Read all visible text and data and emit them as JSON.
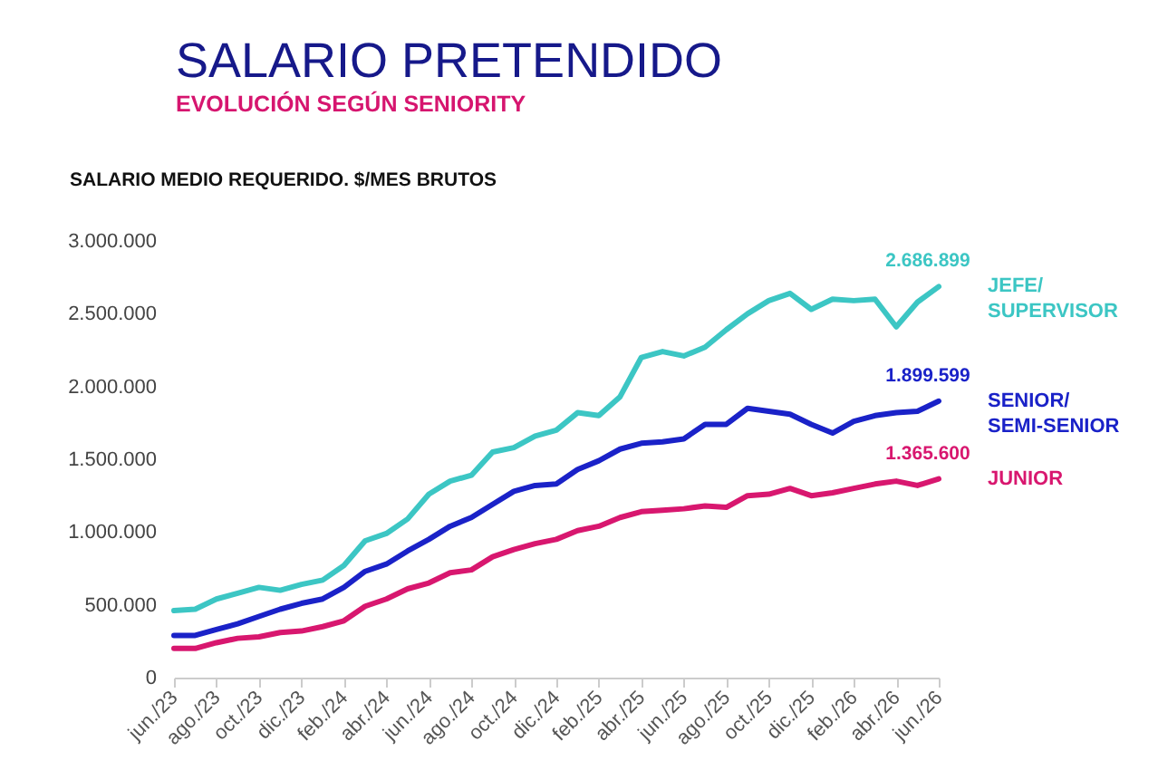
{
  "chart_data": {
    "type": "line",
    "title": "SALARIO PRETENDIDO",
    "subtitle": "EVOLUCIÓN SEGÚN SENIORITY",
    "ylabel": "SALARIO MEDIO REQUERIDO. $/MES BRUTOS",
    "categories": [
      "jun./23",
      null,
      "ago./23",
      null,
      "oct./23",
      null,
      "dic./23",
      null,
      "feb./24",
      null,
      "abr./24",
      null,
      "jun./24",
      null,
      "ago./24",
      null,
      "oct./24",
      null,
      "dic./24",
      null,
      "feb./25",
      null,
      "abr./25",
      null,
      "jun./25",
      null,
      "ago./25",
      null,
      "oct./25",
      null,
      "dic./25",
      null,
      "feb./26",
      null,
      "abr./26",
      null,
      "jun./26"
    ],
    "ylim": [
      0,
      3000000
    ],
    "yticks": [
      0,
      {
        "value": 500000,
        "label": "500.000"
      },
      {
        "value": 1000000,
        "label": "1.000.000"
      },
      {
        "value": 1500000,
        "label": "1.500.000"
      },
      {
        "value": 2000000,
        "label": "2.000.000"
      },
      {
        "value": 2500000,
        "label": "2.500.000"
      },
      {
        "value": 3000000,
        "label": "3.000.000"
      }
    ],
    "grid": false,
    "line_style": "solid",
    "series": [
      {
        "name": "JEFE/ SUPERVISOR",
        "color": "#3cc6c4",
        "values": [
          460000,
          470000,
          540000,
          580000,
          620000,
          600000,
          640000,
          670000,
          770000,
          940000,
          990000,
          1090000,
          1260000,
          1350000,
          1390000,
          1550000,
          1580000,
          1660000,
          1700000,
          1820000,
          1800000,
          1930000,
          2200000,
          2240000,
          2210000,
          2270000,
          2390000,
          2500000,
          2590000,
          2640000,
          2530000,
          2600000,
          2590000,
          2600000,
          2410000,
          2580000,
          2686899
        ],
        "value_labels": [
          null,
          null,
          null,
          null,
          null,
          null,
          null,
          null,
          null,
          null,
          null,
          null,
          null,
          null,
          null,
          null,
          null,
          null,
          null,
          null,
          null,
          null,
          null,
          null,
          null,
          null,
          null,
          null,
          null,
          null,
          null,
          null,
          null,
          null,
          null,
          null,
          "2.686.899"
        ]
      },
      {
        "name": "SENIOR/ SEMI-SENIOR",
        "color": "#1a22c8",
        "values": [
          290000,
          290000,
          330000,
          370000,
          420000,
          470000,
          510000,
          540000,
          620000,
          730000,
          780000,
          870000,
          950000,
          1040000,
          1100000,
          1190000,
          1280000,
          1320000,
          1330000,
          1430000,
          1490000,
          1570000,
          1610000,
          1620000,
          1640000,
          1740000,
          1740000,
          1850000,
          1830000,
          1810000,
          1740000,
          1680000,
          1760000,
          1800000,
          1820000,
          1830000,
          1899599
        ],
        "value_labels": [
          null,
          null,
          null,
          null,
          null,
          null,
          null,
          null,
          null,
          null,
          null,
          null,
          null,
          null,
          null,
          null,
          null,
          null,
          null,
          null,
          null,
          null,
          null,
          null,
          null,
          null,
          null,
          null,
          null,
          null,
          null,
          null,
          null,
          null,
          null,
          null,
          "1.899.599"
        ]
      },
      {
        "name": "JUNIOR",
        "color": "#d8176f",
        "values": [
          200000,
          200000,
          240000,
          270000,
          280000,
          310000,
          320000,
          350000,
          390000,
          490000,
          540000,
          610000,
          650000,
          720000,
          740000,
          830000,
          880000,
          920000,
          950000,
          1010000,
          1040000,
          1100000,
          1140000,
          1150000,
          1160000,
          1180000,
          1170000,
          1250000,
          1260000,
          1300000,
          1250000,
          1270000,
          1300000,
          1330000,
          1350000,
          1320000,
          1365600
        ],
        "value_labels": [
          null,
          null,
          null,
          null,
          null,
          null,
          null,
          null,
          null,
          null,
          null,
          null,
          null,
          null,
          null,
          null,
          null,
          null,
          null,
          null,
          null,
          null,
          null,
          null,
          null,
          null,
          null,
          null,
          null,
          null,
          null,
          null,
          null,
          null,
          null,
          null,
          "1.365.600"
        ]
      }
    ]
  }
}
